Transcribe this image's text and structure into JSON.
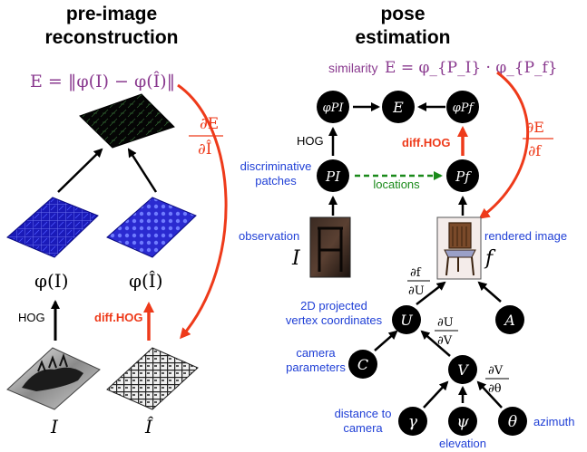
{
  "left_panel": {
    "title_line1": "pre-image",
    "title_line2": "reconstruction",
    "energy_formula": "E = ‖φ(I) − φ(Î)‖",
    "gradient_num": "∂E",
    "gradient_den": "∂Î",
    "phi_I_label": "φ(I)",
    "phi_Ihat_label": "φ(Î)",
    "hog_edge_label": "HOG",
    "diffhog_edge_label": "diff.HOG",
    "image_I_label": "I",
    "image_Ihat_label": "Î"
  },
  "right_panel": {
    "title_line1": "pose",
    "title_line2": "estimation",
    "similarity_word": "similarity",
    "similarity_formula": "E = φ_{P_I} · φ_{P_f}",
    "gradient_num": "∂E",
    "gradient_den": "∂f",
    "nodes": {
      "phi_PI": "φPI",
      "E": "E",
      "phi_Pf": "φPf",
      "P_I": "PI",
      "P_f": "Pf",
      "U": "U",
      "A": "A",
      "C": "C",
      "V": "V",
      "gamma": "γ",
      "psi": "ψ",
      "theta": "θ"
    },
    "labels": {
      "hog": "HOG",
      "diffhog": "diff.HOG",
      "discriminative_patches": [
        "discriminative",
        "patches"
      ],
      "locations": "locations",
      "observation": "observation",
      "observation_var": "I",
      "rendered_image": "rendered image",
      "rendered_var": "f",
      "vertex_coords": [
        "2D projected",
        "vertex coordinates"
      ],
      "camera_parameters": [
        "camera",
        "parameters"
      ],
      "distance_to_camera": [
        "distance to",
        "camera"
      ],
      "elevation": "elevation",
      "azimuth": "azimuth",
      "df_dU_num": "∂f",
      "df_dU_den": "∂U",
      "dU_dV_num": "∂U",
      "dU_dV_den": "∂V",
      "dV_dtheta_num": "∂V",
      "dV_dtheta_den": "∂θ"
    }
  },
  "colors": {
    "black": "#000000",
    "red_arrow": "#ee3a1a",
    "green_dashed": "#1a8a1a",
    "blue_label": "#1f3fd6",
    "purple_formula": "#8a3a8f",
    "hog_blue": "#1a1ab8"
  }
}
